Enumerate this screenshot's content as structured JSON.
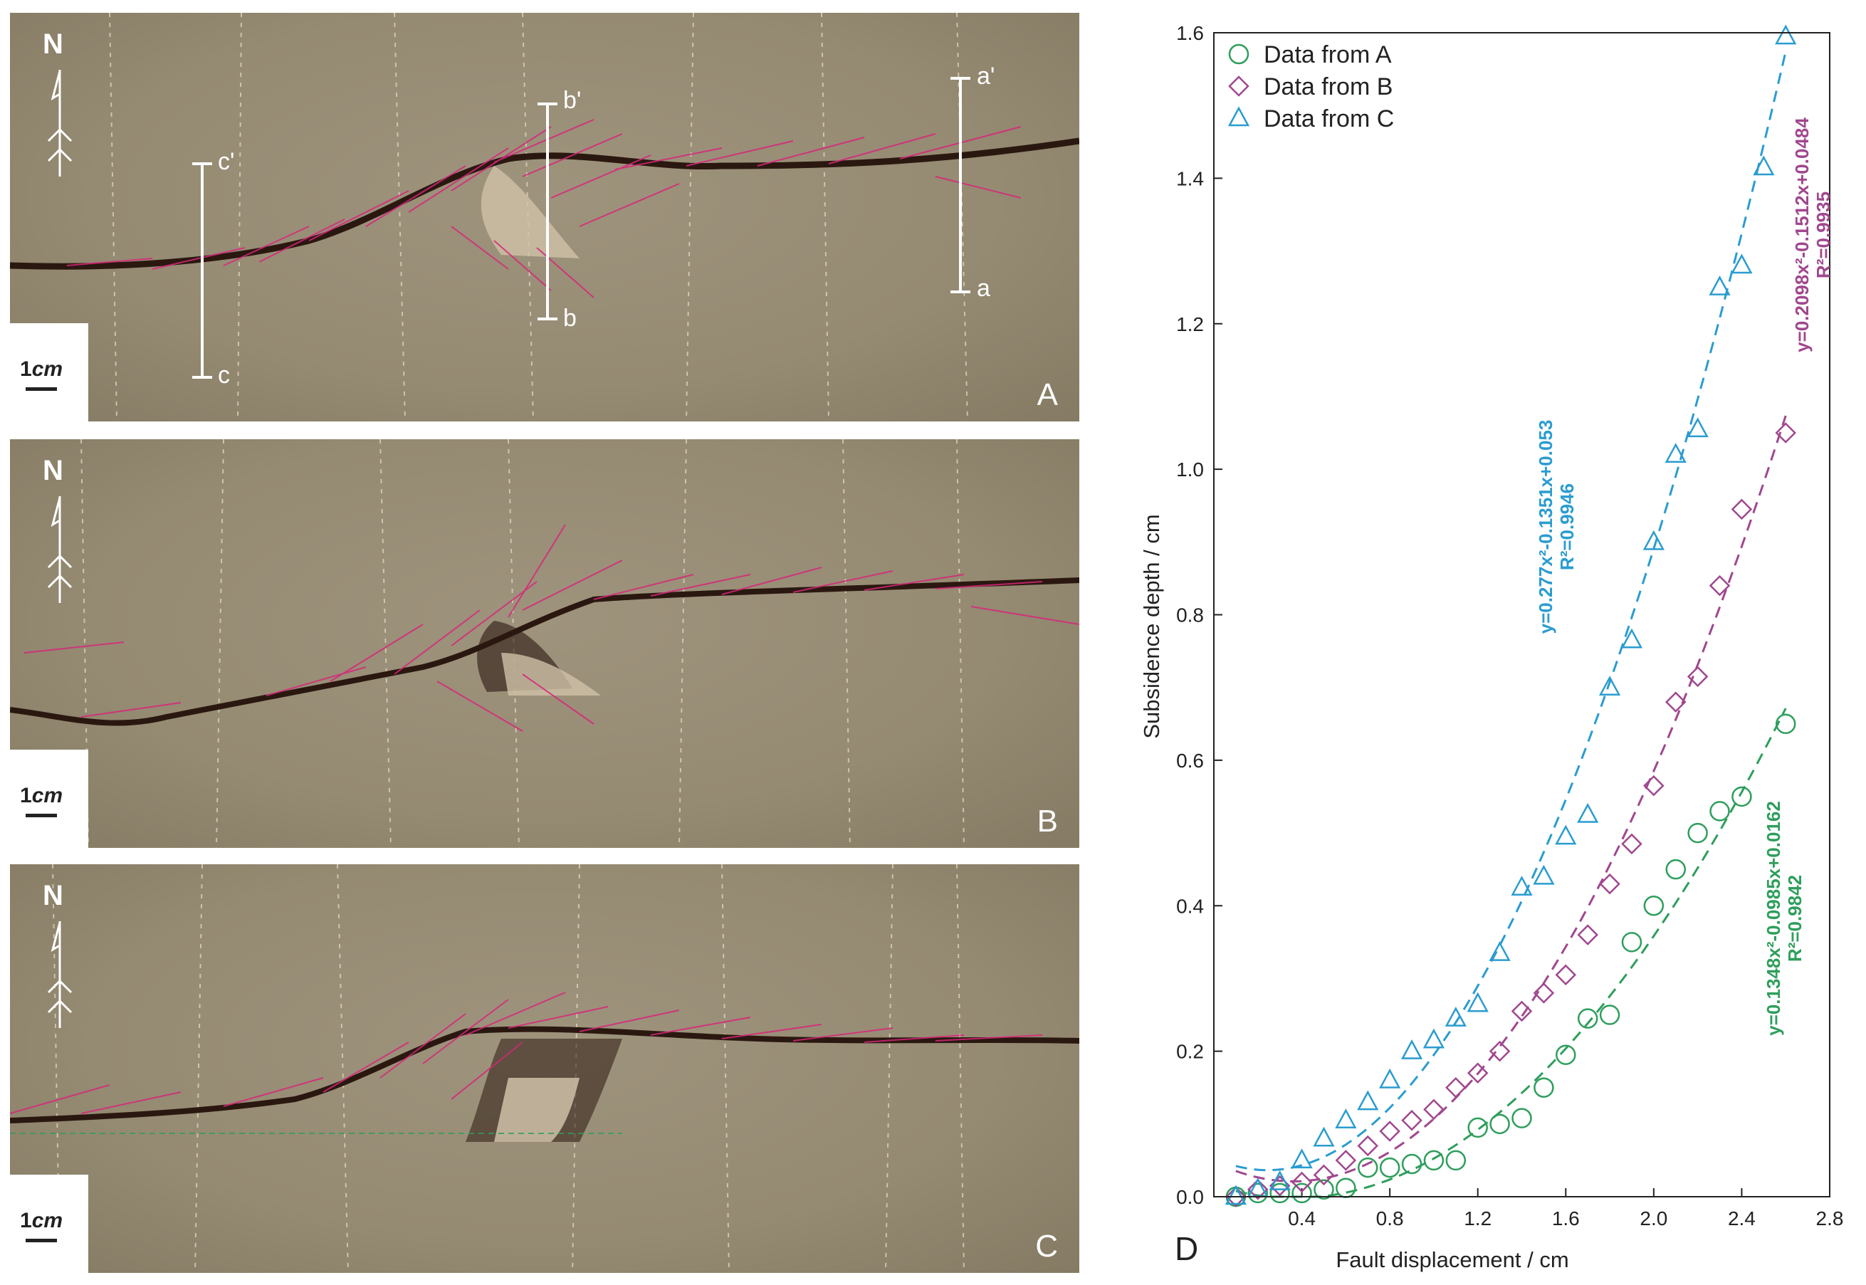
{
  "photos": [
    {
      "letter": "A",
      "north": "N",
      "scale_num": "1",
      "scale_unit": "cm",
      "profiles": [
        {
          "top": "c'",
          "bottom": "c"
        },
        {
          "top": "b'",
          "bottom": "b"
        },
        {
          "top": "a'",
          "bottom": "a"
        }
      ]
    },
    {
      "letter": "B",
      "north": "N",
      "scale_num": "1",
      "scale_unit": "cm"
    },
    {
      "letter": "C",
      "north": "N",
      "scale_num": "1",
      "scale_unit": "cm"
    }
  ],
  "colors": {
    "A": "#2e9e5c",
    "B": "#a0478e",
    "C": "#2a9cd0",
    "photo": "#958a72",
    "fault": "#d8267a"
  },
  "chart_data": {
    "type": "scatter",
    "panel_label": "D",
    "xlabel": "Fault displacement / cm",
    "ylabel": "Subsidence depth / cm",
    "xlim": [
      0,
      2.8
    ],
    "ylim": [
      0,
      1.6
    ],
    "xticks": [
      0.4,
      0.8,
      1.2,
      1.6,
      2.0,
      2.4,
      2.8
    ],
    "yticks": [
      0.0,
      0.2,
      0.4,
      0.6,
      0.8,
      1.0,
      1.2,
      1.4,
      1.6
    ],
    "legend_position": "top-left",
    "series": [
      {
        "name": "Data from A",
        "key": "A",
        "marker": "circle",
        "x": [
          0.1,
          0.2,
          0.3,
          0.4,
          0.5,
          0.6,
          0.7,
          0.8,
          0.9,
          1.0,
          1.1,
          1.2,
          1.3,
          1.4,
          1.5,
          1.6,
          1.7,
          1.8,
          1.9,
          2.0,
          2.1,
          2.2,
          2.3,
          2.4,
          2.6
        ],
        "y": [
          0.0,
          0.005,
          0.005,
          0.005,
          0.01,
          0.012,
          0.04,
          0.04,
          0.045,
          0.05,
          0.05,
          0.095,
          0.1,
          0.108,
          0.15,
          0.195,
          0.245,
          0.25,
          0.35,
          0.4,
          0.45,
          0.5,
          0.53,
          0.55,
          0.65
        ],
        "fit": {
          "a": 0.1348,
          "b": -0.0985,
          "c": 0.0162
        },
        "equation": "y=0.1348x²-0.0985x+0.0162",
        "r2": "R²=0.9842"
      },
      {
        "name": "Data from B",
        "key": "B",
        "marker": "diamond",
        "x": [
          0.1,
          0.2,
          0.3,
          0.4,
          0.5,
          0.6,
          0.7,
          0.8,
          0.9,
          1.0,
          1.1,
          1.2,
          1.3,
          1.4,
          1.5,
          1.6,
          1.7,
          1.8,
          1.9,
          2.0,
          2.1,
          2.2,
          2.3,
          2.4,
          2.6
        ],
        "y": [
          0.0,
          0.01,
          0.015,
          0.02,
          0.03,
          0.05,
          0.07,
          0.09,
          0.105,
          0.12,
          0.15,
          0.17,
          0.2,
          0.255,
          0.28,
          0.305,
          0.36,
          0.43,
          0.485,
          0.565,
          0.68,
          0.715,
          0.84,
          0.945,
          1.05
        ],
        "fit": {
          "a": 0.2098,
          "b": -0.1512,
          "c": 0.0484
        },
        "equation": "y=0.2098x²-0.1512x+0.0484",
        "r2": "R²=0.9935"
      },
      {
        "name": "Data from C",
        "key": "C",
        "marker": "triangle",
        "x": [
          0.1,
          0.2,
          0.3,
          0.4,
          0.5,
          0.6,
          0.7,
          0.8,
          0.9,
          1.0,
          1.1,
          1.2,
          1.3,
          1.4,
          1.5,
          1.6,
          1.7,
          1.8,
          1.9,
          2.0,
          2.1,
          2.2,
          2.3,
          2.4,
          2.5,
          2.6
        ],
        "y": [
          0.0,
          0.01,
          0.02,
          0.05,
          0.08,
          0.105,
          0.13,
          0.16,
          0.2,
          0.215,
          0.245,
          0.265,
          0.335,
          0.425,
          0.44,
          0.495,
          0.525,
          0.7,
          0.765,
          0.9,
          1.02,
          1.055,
          1.25,
          1.28,
          1.415,
          1.595
        ],
        "fit": {
          "a": 0.277,
          "b": -0.1351,
          "c": 0.053
        },
        "equation": "y=0.277x²-0.1351x+0.053",
        "r2": "R²=0.9946"
      }
    ]
  }
}
